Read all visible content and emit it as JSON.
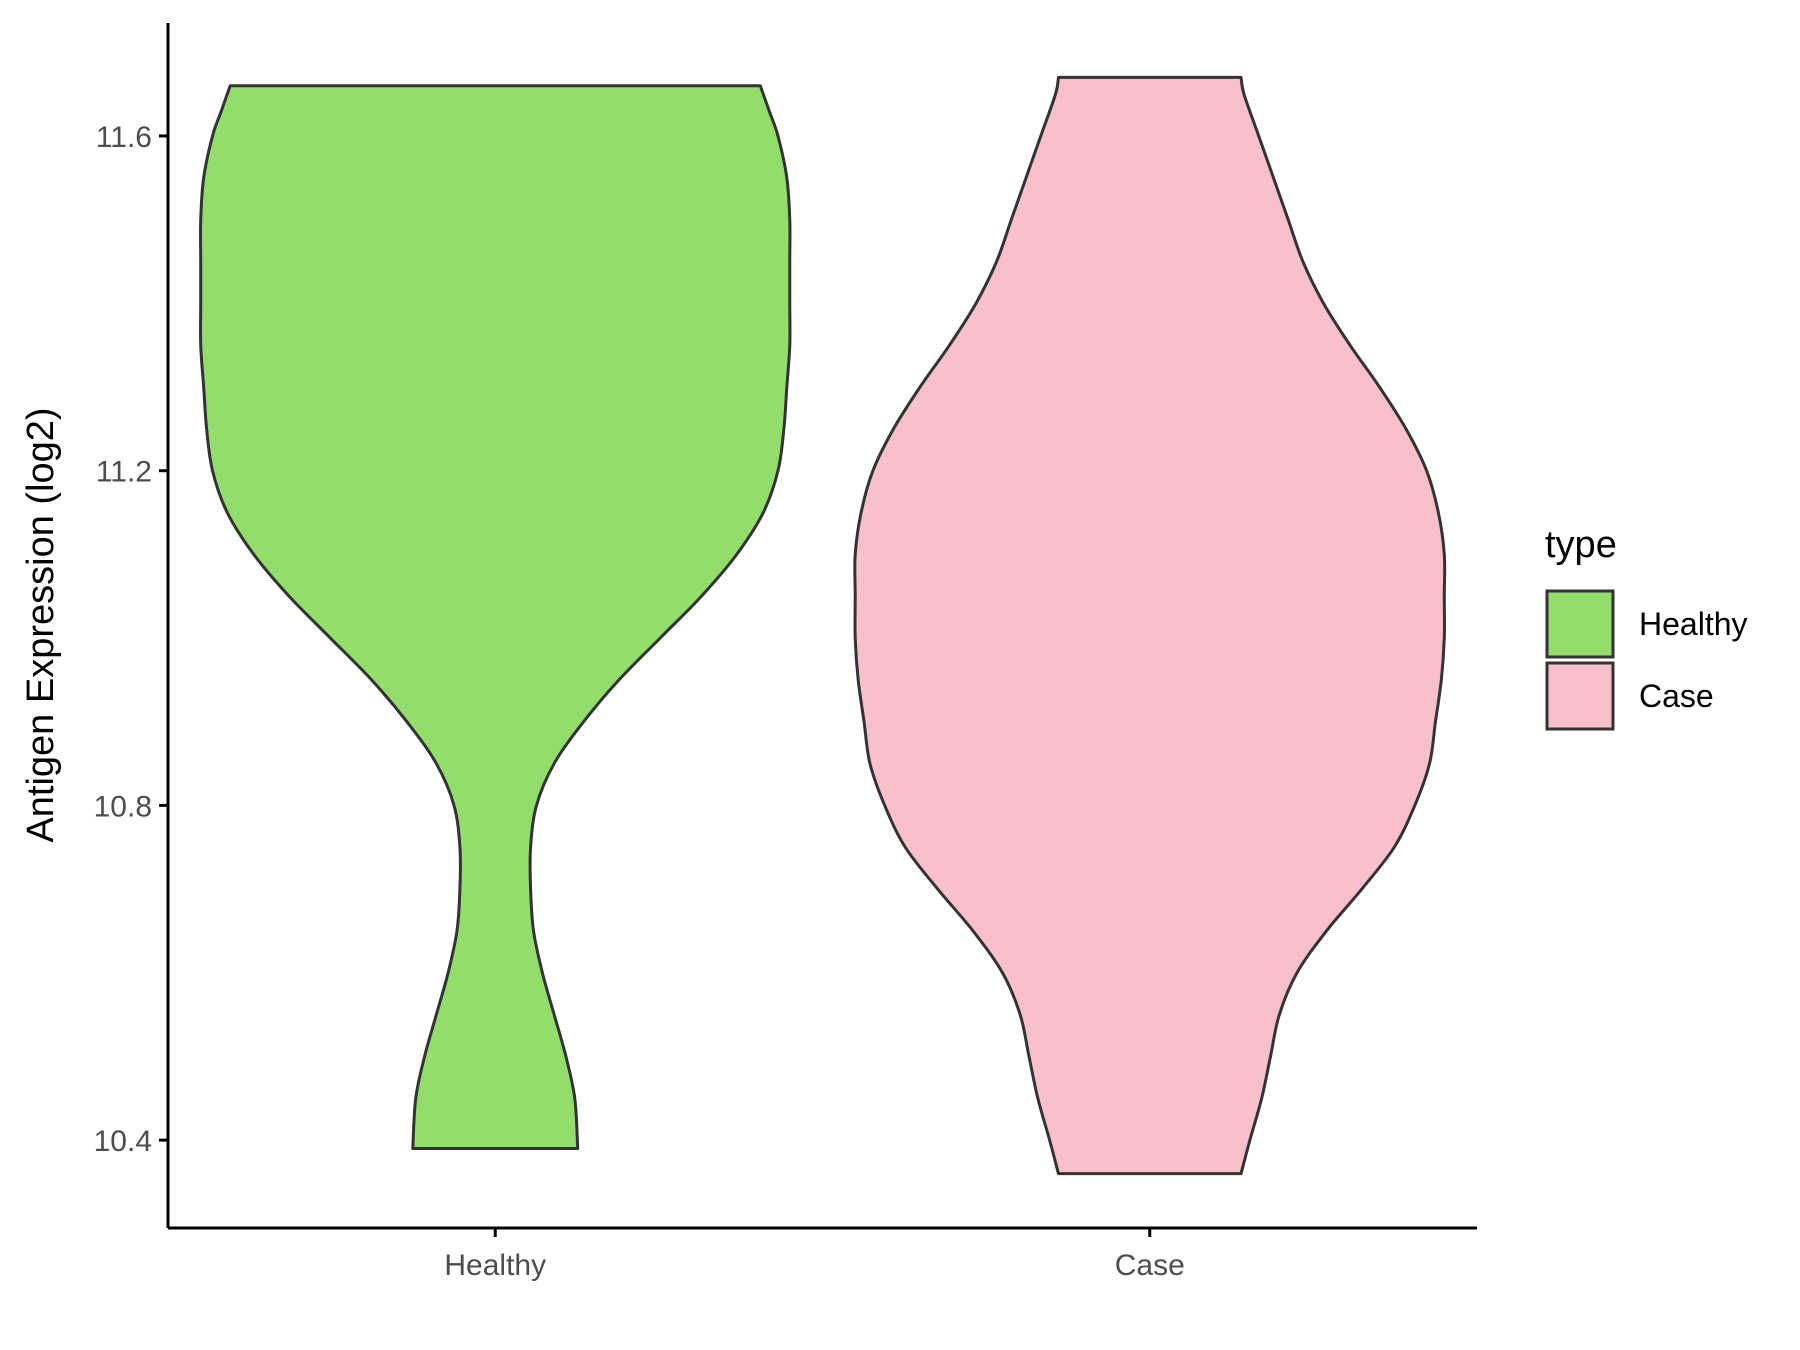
{
  "chart_data": {
    "type": "violin",
    "ylabel": "Antigen Expression (log2)",
    "xlabel": "",
    "ylim": [
      10.295,
      11.735
    ],
    "yticks": [
      "10.4",
      "10.8",
      "11.2",
      "11.6"
    ],
    "categories": [
      "Healthy",
      "Case"
    ],
    "legend": {
      "title": "type",
      "placement": "right",
      "entries": [
        "Healthy",
        "Case"
      ]
    },
    "series": [
      {
        "name": "Healthy",
        "color": "#93DD6C",
        "min": 10.39,
        "max": 11.66,
        "density": [
          [
            10.39,
            0.28
          ],
          [
            10.45,
            0.27
          ],
          [
            10.5,
            0.24
          ],
          [
            10.55,
            0.2
          ],
          [
            10.6,
            0.16
          ],
          [
            10.65,
            0.13
          ],
          [
            10.7,
            0.12
          ],
          [
            10.75,
            0.12
          ],
          [
            10.8,
            0.14
          ],
          [
            10.85,
            0.2
          ],
          [
            10.9,
            0.3
          ],
          [
            10.95,
            0.42
          ],
          [
            11.0,
            0.56
          ],
          [
            11.05,
            0.7
          ],
          [
            11.1,
            0.82
          ],
          [
            11.15,
            0.91
          ],
          [
            11.2,
            0.96
          ],
          [
            11.25,
            0.98
          ],
          [
            11.3,
            0.99
          ],
          [
            11.35,
            1.0
          ],
          [
            11.4,
            1.0
          ],
          [
            11.45,
            1.0
          ],
          [
            11.5,
            1.0
          ],
          [
            11.55,
            0.99
          ],
          [
            11.6,
            0.96
          ],
          [
            11.63,
            0.93
          ],
          [
            11.66,
            0.9
          ]
        ]
      },
      {
        "name": "Case",
        "color": "#F7C0CB",
        "min": 10.36,
        "max": 11.67,
        "density": [
          [
            10.36,
            0.31
          ],
          [
            10.4,
            0.34
          ],
          [
            10.45,
            0.38
          ],
          [
            10.5,
            0.41
          ],
          [
            10.55,
            0.44
          ],
          [
            10.6,
            0.5
          ],
          [
            10.65,
            0.6
          ],
          [
            10.7,
            0.72
          ],
          [
            10.75,
            0.83
          ],
          [
            10.8,
            0.9
          ],
          [
            10.85,
            0.95
          ],
          [
            10.9,
            0.97
          ],
          [
            10.95,
            0.99
          ],
          [
            11.0,
            1.0
          ],
          [
            11.05,
            1.0
          ],
          [
            11.1,
            1.0
          ],
          [
            11.15,
            0.98
          ],
          [
            11.2,
            0.94
          ],
          [
            11.25,
            0.87
          ],
          [
            11.3,
            0.78
          ],
          [
            11.35,
            0.68
          ],
          [
            11.4,
            0.59
          ],
          [
            11.45,
            0.52
          ],
          [
            11.5,
            0.47
          ],
          [
            11.55,
            0.42
          ],
          [
            11.6,
            0.37
          ],
          [
            11.65,
            0.32
          ],
          [
            11.67,
            0.31
          ]
        ]
      }
    ]
  }
}
